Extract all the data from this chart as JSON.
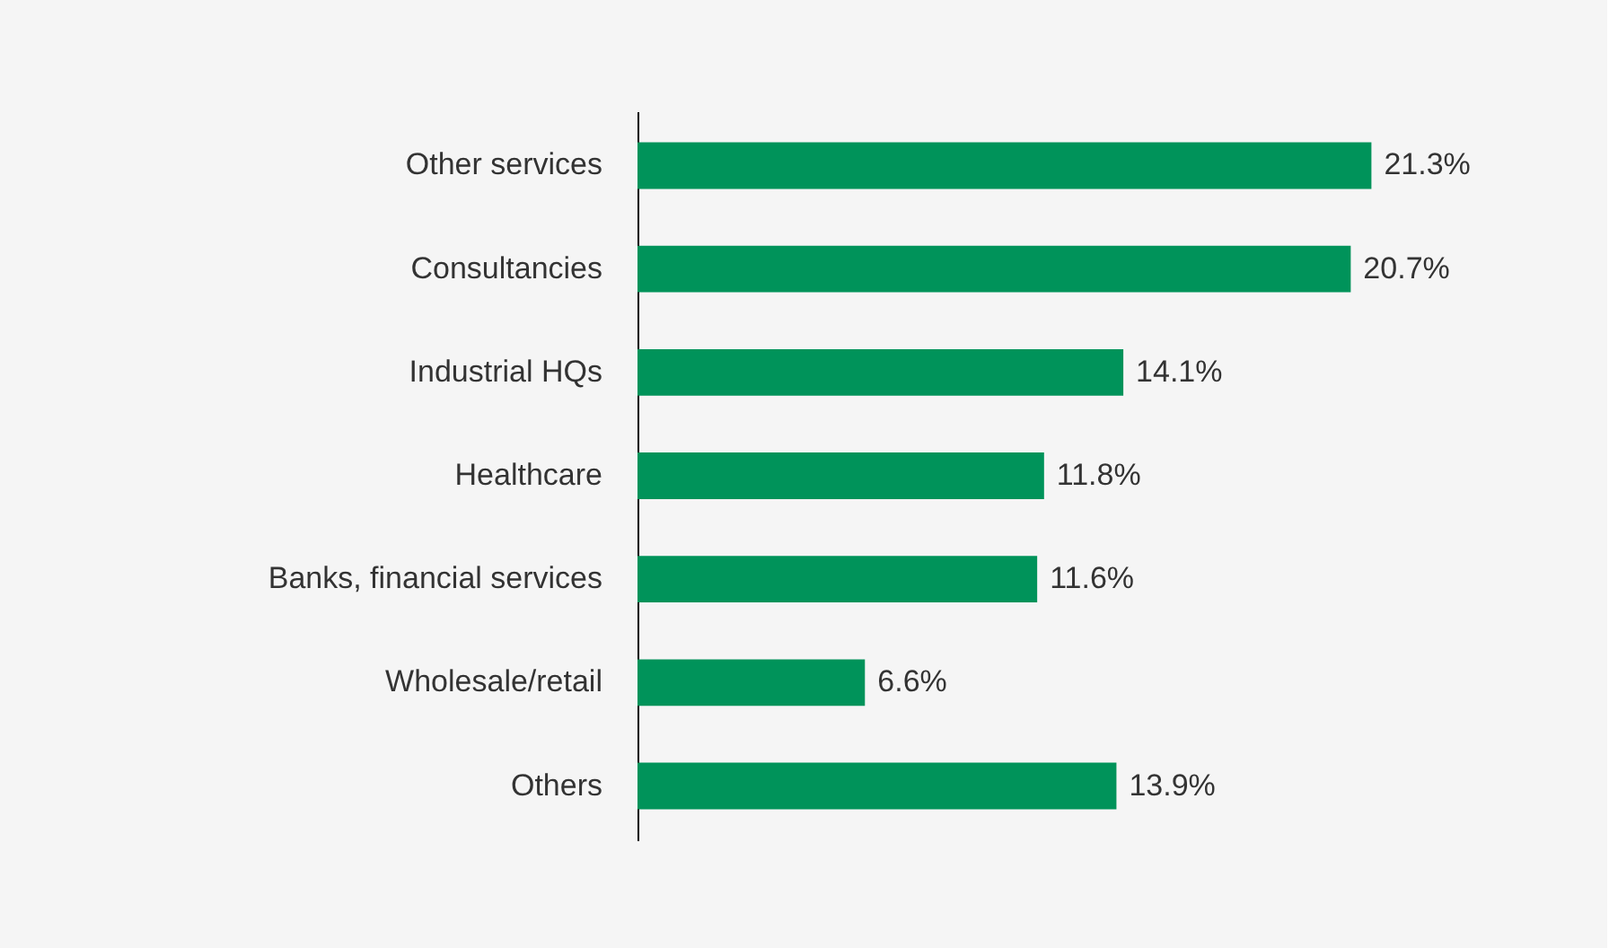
{
  "chart_data": {
    "type": "bar",
    "orientation": "horizontal",
    "categories": [
      "Other services",
      "Consultancies",
      "Industrial HQs",
      "Healthcare",
      "Banks, financial services",
      "Wholesale/retail",
      "Others"
    ],
    "values": [
      21.3,
      20.7,
      14.1,
      11.8,
      11.6,
      6.6,
      13.9
    ],
    "value_labels": [
      "21.3%",
      "20.7%",
      "14.1%",
      "11.8%",
      "11.6%",
      "6.6%",
      "13.9%"
    ],
    "color": "#00935a",
    "tick_labels": "y"
  }
}
